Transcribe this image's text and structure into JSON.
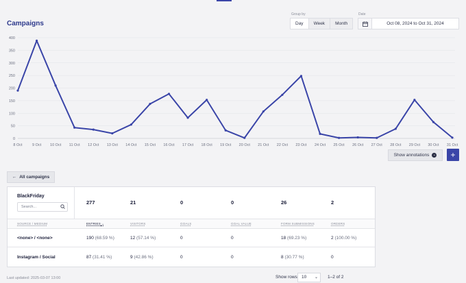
{
  "header": {
    "title": "Campaigns",
    "group_by_label": "Group by",
    "group_options": [
      "Day",
      "Week",
      "Month"
    ],
    "group_selected": "Day",
    "date_label": "Date",
    "date_value": "Oct 08, 2024 to Oct 31, 2024",
    "calendar_icon": "calendar-icon"
  },
  "chart_data": {
    "type": "line",
    "title": "",
    "xlabel": "",
    "ylabel": "",
    "x": [
      "8 Oct",
      "9 Oct",
      "10 Oct",
      "11 Oct",
      "12 Oct",
      "13 Oct",
      "14 Oct",
      "15 Oct",
      "16 Oct",
      "17 Oct",
      "18 Oct",
      "19 Oct",
      "20 Oct",
      "21 Oct",
      "22 Oct",
      "23 Oct",
      "24 Oct",
      "25 Oct",
      "26 Oct",
      "27 Oct",
      "28 Oct",
      "29 Oct",
      "30 Oct",
      "31 Oct"
    ],
    "series": [
      {
        "values": [
          190,
          388,
          210,
          43,
          35,
          20,
          55,
          137,
          177,
          82,
          153,
          32,
          2,
          107,
          173,
          248,
          18,
          2,
          4,
          2,
          38,
          153,
          65,
          3
        ],
        "color": "#3a45a8"
      }
    ],
    "ylim": [
      0,
      400
    ],
    "yticks": [
      0,
      50,
      100,
      150,
      200,
      250,
      300,
      350,
      400
    ],
    "grid": true
  },
  "actions": {
    "show_annotations_label": "Show annotations",
    "add_label": "+",
    "back_label": "All campaigns"
  },
  "campaign": {
    "name": "BlackFriday",
    "search_placeholder": "Search...",
    "totals": [
      "277",
      "21",
      "0",
      "0",
      "26",
      "2"
    ]
  },
  "table": {
    "columns": [
      "Source / Medium",
      "Entries",
      "Visitors",
      "Goals",
      "Goal value",
      "Form submissions",
      "Orders"
    ],
    "rows": [
      {
        "source": "<none> / <none>",
        "entries": "190",
        "entries_pct": "(68.59 %)",
        "visitors": "12",
        "visitors_pct": "(57.14 %)",
        "goals": "0",
        "goal_value": "0",
        "forms": "18",
        "forms_pct": "(69.23 %)",
        "orders": "2",
        "orders_pct": "(100.00 %)"
      },
      {
        "source": "Instagram / Social",
        "entries": "87",
        "entries_pct": "(31.41 %)",
        "visitors": "9",
        "visitors_pct": "(42.86 %)",
        "goals": "0",
        "goal_value": "0",
        "forms": "8",
        "forms_pct": "(30.77 %)",
        "orders": "0",
        "orders_pct": ""
      }
    ]
  },
  "footer": {
    "last_updated": "Last updated: 2025-03-07 13:00",
    "show_rows_label": "Show rows:",
    "rows_value": "10",
    "range": "1–2 of 2"
  }
}
